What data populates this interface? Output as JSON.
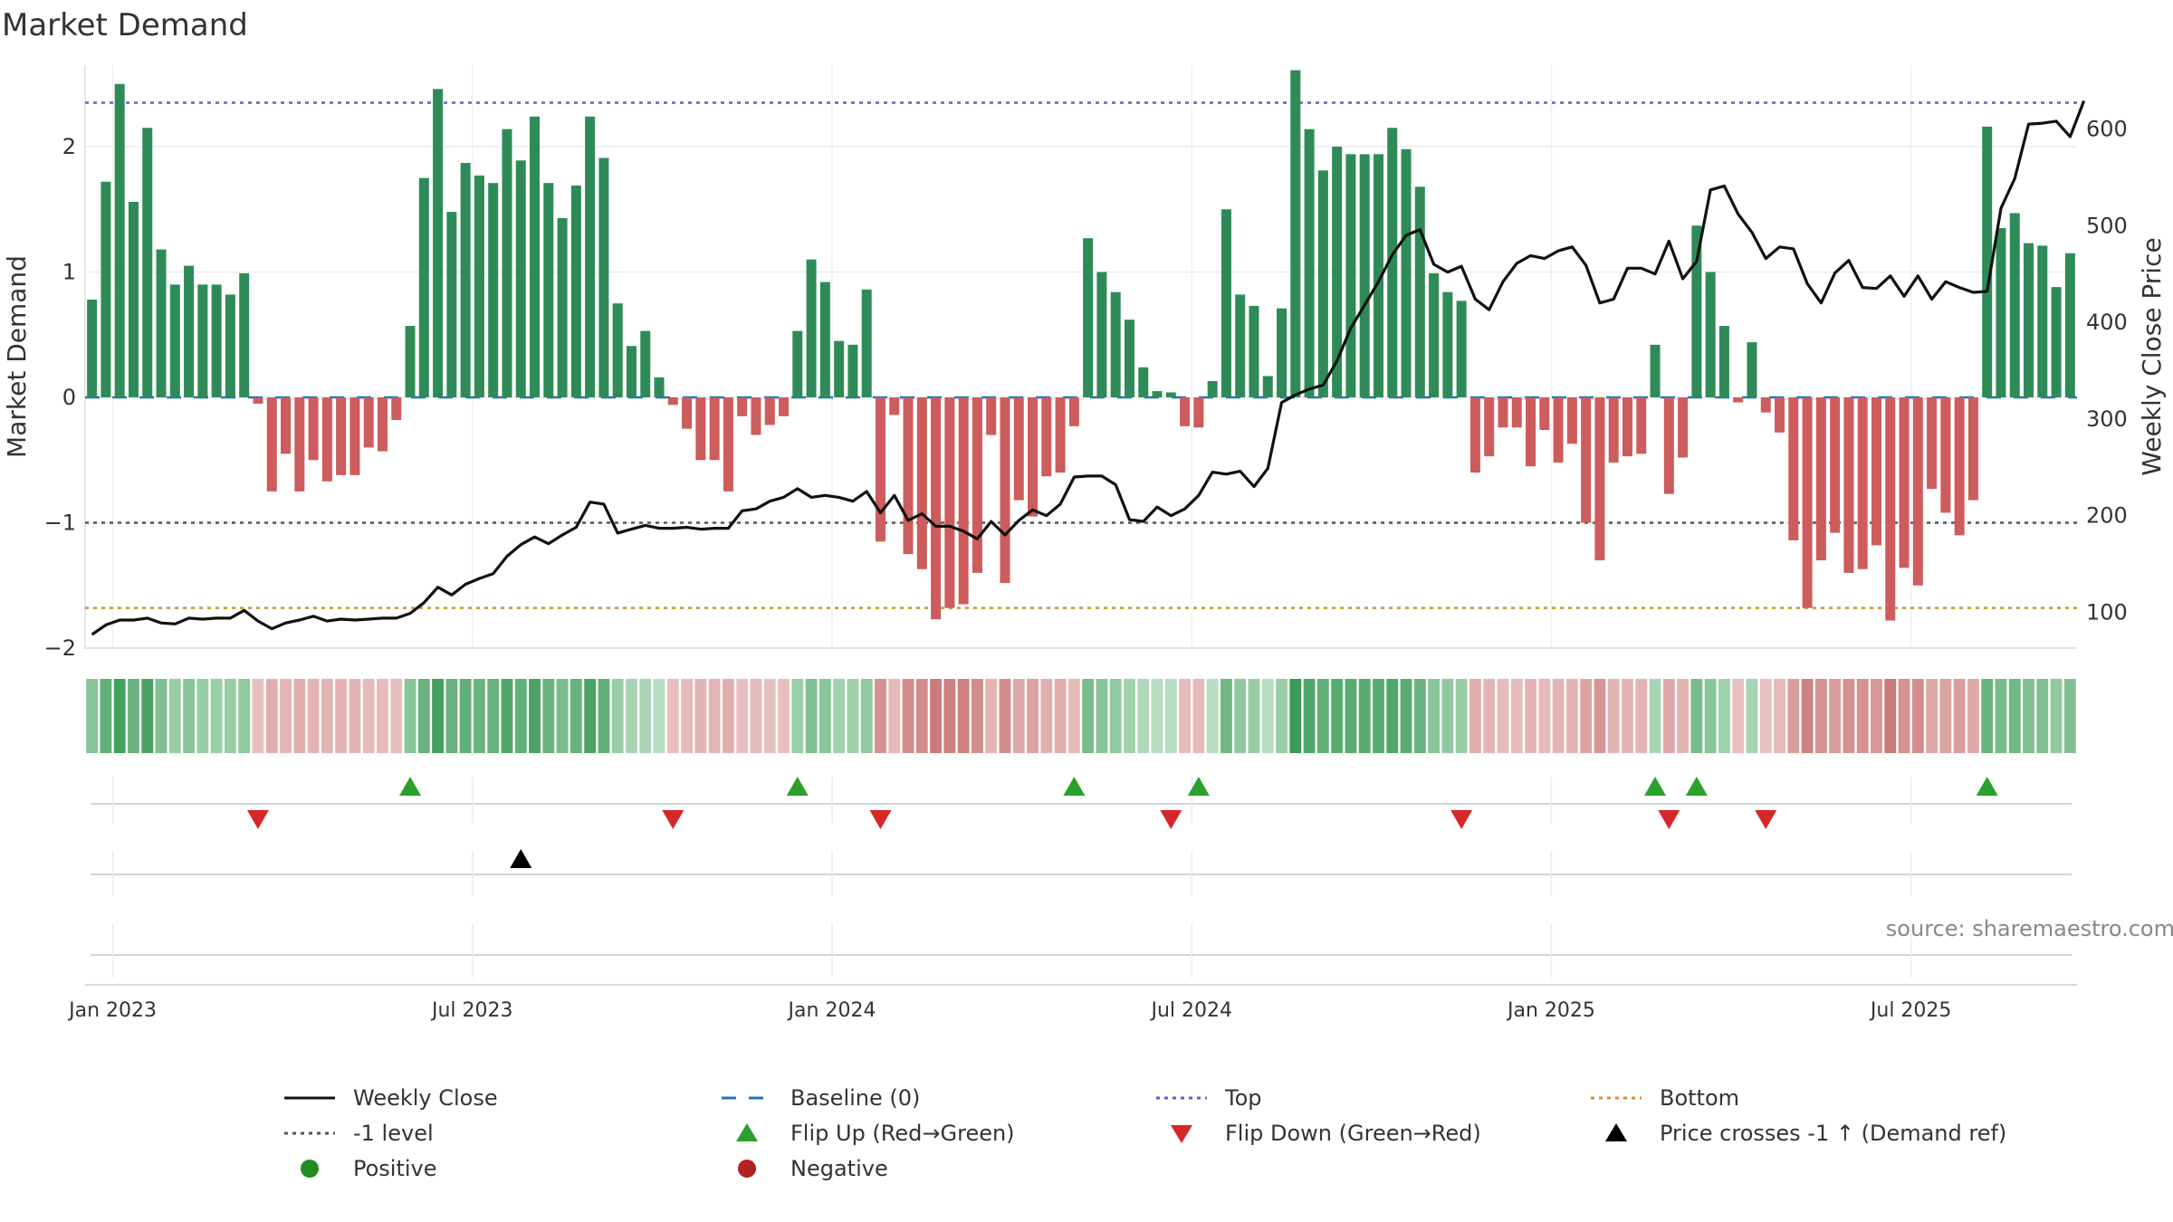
{
  "title": "Market Demand",
  "source": "source: sharemaestro.com",
  "colors": {
    "pos": "#2e8b57",
    "neg": "#cd5c5c",
    "price": "#111111",
    "baseline": "#1f77b4",
    "top": "#6a5acd",
    "minus1": "#555555",
    "bottom": "#d4902a",
    "flip_up": "#2ca02c",
    "flip_down": "#d62728",
    "cross": "#000000",
    "legend_pos": "#228b22",
    "legend_neg": "#b22222"
  },
  "chart_data": {
    "type": "bar",
    "x_axis": {
      "ticks": [
        "Jan 2023",
        "Jul 2023",
        "Jan 2024",
        "Jul 2024",
        "Jan 2025",
        "Jul 2025"
      ],
      "tick_weeks": [
        1.5,
        27.5,
        53.5,
        79.5,
        105.5,
        131.5
      ]
    },
    "left_axis": {
      "label": "Market Demand",
      "range": [
        -2.0,
        2.65
      ],
      "ticks": [
        -2,
        -1,
        0,
        1,
        2
      ]
    },
    "right_axis": {
      "label": "Weekly Close Price",
      "range": [
        63,
        666
      ],
      "ticks": [
        100,
        200,
        300,
        400,
        500,
        600
      ]
    },
    "reference_lines": {
      "baseline": 0,
      "top": 2.35,
      "minus1": -1,
      "bottom": -1.68
    },
    "demand": [
      0.78,
      1.72,
      2.5,
      1.56,
      2.15,
      1.18,
      0.9,
      1.05,
      0.9,
      0.9,
      0.82,
      0.99,
      -0.05,
      -0.75,
      -0.45,
      -0.75,
      -0.5,
      -0.67,
      -0.62,
      -0.62,
      -0.4,
      -0.43,
      -0.18,
      0.57,
      1.75,
      2.46,
      1.48,
      1.87,
      1.77,
      1.71,
      2.14,
      1.89,
      2.24,
      1.71,
      1.43,
      1.69,
      2.24,
      1.91,
      0.75,
      0.41,
      0.53,
      0.16,
      -0.06,
      -0.25,
      -0.5,
      -0.5,
      -0.75,
      -0.15,
      -0.3,
      -0.22,
      -0.15,
      0.53,
      1.1,
      0.92,
      0.45,
      0.42,
      0.86,
      -1.15,
      -0.14,
      -1.25,
      -1.37,
      -1.77,
      -1.68,
      -1.65,
      -1.4,
      -0.3,
      -1.48,
      -0.82,
      -0.95,
      -0.63,
      -0.6,
      -0.23,
      1.27,
      1.0,
      0.84,
      0.62,
      0.24,
      0.05,
      0.04,
      -0.23,
      -0.24,
      0.13,
      1.5,
      0.82,
      0.73,
      0.17,
      0.71,
      2.61,
      2.14,
      1.81,
      2.0,
      1.94,
      1.94,
      1.94,
      2.15,
      1.98,
      1.68,
      0.99,
      0.84,
      0.77,
      -0.6,
      -0.47,
      -0.24,
      -0.24,
      -0.55,
      -0.26,
      -0.52,
      -0.37,
      -1.0,
      -1.3,
      -0.52,
      -0.47,
      -0.45,
      0.42,
      -0.77,
      -0.48,
      1.37,
      1.0,
      0.57,
      -0.04,
      0.44,
      -0.12,
      -0.28,
      -1.14,
      -1.68,
      -1.3,
      -1.08,
      -1.4,
      -1.37,
      -1.18,
      -1.78,
      -1.36,
      -1.5,
      -0.73,
      -0.92,
      -1.1,
      -0.82,
      2.16,
      1.35,
      1.47,
      1.23,
      1.21,
      0.88,
      1.15
    ],
    "weekly_close": [
      77,
      87,
      92,
      92,
      94,
      89,
      88,
      94,
      93,
      94,
      94,
      102,
      91,
      83,
      89,
      92,
      96,
      91,
      93,
      92,
      93,
      94,
      94,
      99,
      110,
      126,
      118,
      129,
      135,
      140,
      158,
      170,
      178,
      171,
      180,
      188,
      214,
      212,
      182,
      186,
      190,
      187,
      187,
      188,
      186,
      187,
      187,
      205,
      207,
      215,
      219,
      228,
      219,
      221,
      219,
      215,
      225,
      203,
      221,
      195,
      202,
      189,
      189,
      184,
      176,
      194,
      180,
      195,
      206,
      200,
      212,
      240,
      241,
      241,
      232,
      196,
      194,
      209,
      200,
      207,
      221,
      245,
      243,
      246,
      230,
      249,
      317,
      325,
      331,
      335,
      360,
      394,
      418,
      442,
      470,
      490,
      496,
      460,
      452,
      458,
      424,
      413,
      442,
      461,
      469,
      466,
      474,
      478,
      459,
      420,
      424,
      456,
      456,
      450,
      484,
      445,
      463,
      537,
      541,
      512,
      493,
      466,
      478,
      476,
      440,
      420,
      451,
      464,
      436,
      435,
      448,
      427,
      448,
      424,
      442,
      436,
      431,
      432,
      518,
      549,
      605,
      606,
      608,
      592,
      629
    ],
    "strip_intensity": [
      0.5,
      0.75,
      0.95,
      0.7,
      0.9,
      0.55,
      0.4,
      0.5,
      0.4,
      0.4,
      0.4,
      0.45,
      0.2,
      0.35,
      0.3,
      0.35,
      0.3,
      0.3,
      0.3,
      0.3,
      0.25,
      0.25,
      0.2,
      0.5,
      0.7,
      0.95,
      0.7,
      0.75,
      0.7,
      0.7,
      0.85,
      0.75,
      0.9,
      0.7,
      0.6,
      0.7,
      0.9,
      0.75,
      0.4,
      0.3,
      0.3,
      0.2,
      0.2,
      0.25,
      0.3,
      0.3,
      0.35,
      0.2,
      0.25,
      0.2,
      0.2,
      0.4,
      0.55,
      0.5,
      0.35,
      0.35,
      0.45,
      0.6,
      0.25,
      0.65,
      0.65,
      0.8,
      0.75,
      0.75,
      0.65,
      0.3,
      0.65,
      0.4,
      0.45,
      0.35,
      0.35,
      0.25,
      0.6,
      0.5,
      0.45,
      0.35,
      0.25,
      0.2,
      0.2,
      0.25,
      0.25,
      0.2,
      0.65,
      0.45,
      0.4,
      0.2,
      0.4,
      1.0,
      0.85,
      0.75,
      0.8,
      0.8,
      0.8,
      0.8,
      0.85,
      0.8,
      0.7,
      0.5,
      0.45,
      0.4,
      0.35,
      0.3,
      0.25,
      0.25,
      0.3,
      0.25,
      0.3,
      0.3,
      0.45,
      0.55,
      0.3,
      0.3,
      0.3,
      0.3,
      0.4,
      0.3,
      0.6,
      0.5,
      0.35,
      0.2,
      0.3,
      0.2,
      0.25,
      0.5,
      0.75,
      0.6,
      0.5,
      0.6,
      0.6,
      0.55,
      0.8,
      0.6,
      0.65,
      0.4,
      0.45,
      0.5,
      0.4,
      0.7,
      0.6,
      0.65,
      0.55,
      0.55,
      0.45,
      0.55
    ],
    "flip_up_weeks": [
      23,
      51,
      71,
      80,
      113,
      116,
      137
    ],
    "flip_down_weeks": [
      12,
      42,
      57,
      78,
      99,
      114,
      121
    ],
    "cross_weeks": [
      31
    ]
  },
  "legend": [
    {
      "label": "Weekly Close",
      "symbol": "line",
      "color": "#111111"
    },
    {
      "label": "Baseline (0)",
      "symbol": "dash",
      "color": "#1f77b4"
    },
    {
      "label": "Top",
      "symbol": "dot",
      "color": "#6a5acd"
    },
    {
      "label": "Bottom",
      "symbol": "dot",
      "color": "#d4902a"
    },
    {
      "label": "-1 level",
      "symbol": "dot",
      "color": "#555555"
    },
    {
      "label": "Flip Up (Red→Green)",
      "symbol": "tri-up",
      "color": "#2ca02c"
    },
    {
      "label": "Flip Down (Green→Red)",
      "symbol": "tri-down",
      "color": "#d62728"
    },
    {
      "label": "Price crosses -1 ↑ (Demand ref)",
      "symbol": "tri-up",
      "color": "#000000"
    },
    {
      "label": "Positive",
      "symbol": "circle",
      "color": "#228b22"
    },
    {
      "label": "Negative",
      "symbol": "circle",
      "color": "#b22222"
    }
  ]
}
